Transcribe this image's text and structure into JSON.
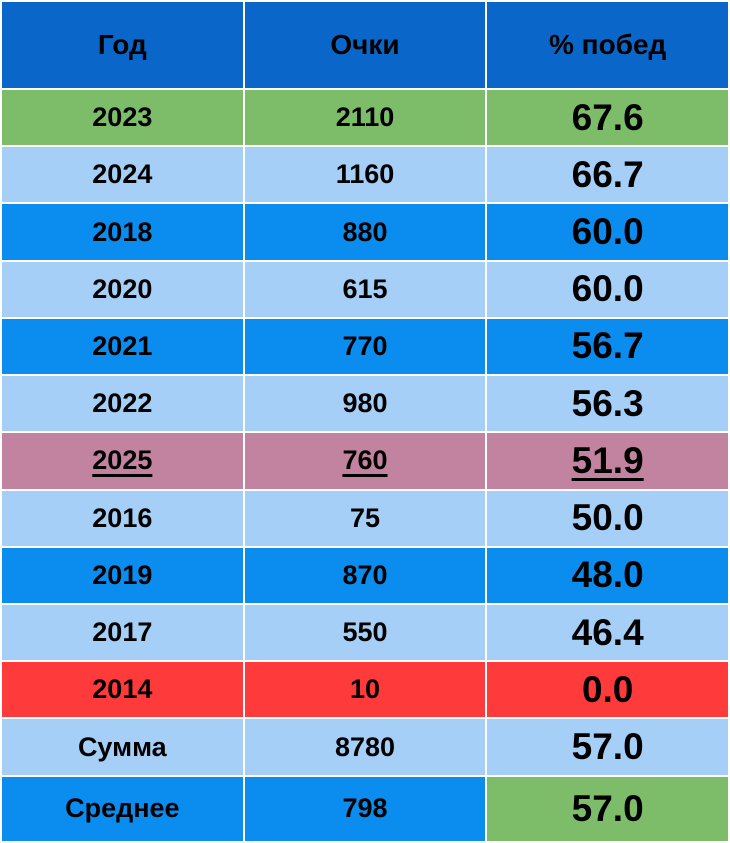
{
  "table": {
    "header": [
      "Год",
      "Очки",
      "% побед"
    ],
    "rows": [
      [
        "2023",
        "2110",
        "67.6"
      ],
      [
        "2024",
        "1160",
        "66.7"
      ],
      [
        "2018",
        "880",
        "60.0"
      ],
      [
        "2020",
        "615",
        "60.0"
      ],
      [
        "2021",
        "770",
        "56.7"
      ],
      [
        "2022",
        "980",
        "56.3"
      ],
      [
        "2025",
        "760",
        "51.9"
      ],
      [
        "2016",
        "75",
        "50.0"
      ],
      [
        "2019",
        "870",
        "48.0"
      ],
      [
        "2017",
        "550",
        "46.4"
      ],
      [
        "2014",
        "10",
        "0.0"
      ],
      [
        "Сумма",
        "8780",
        "57.0"
      ],
      [
        "Среднее",
        "798",
        "57.0"
      ]
    ]
  }
}
